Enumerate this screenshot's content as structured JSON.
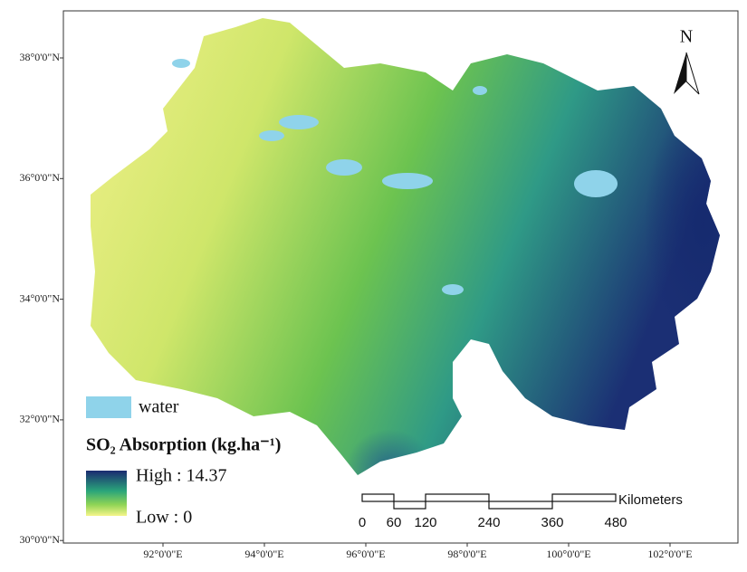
{
  "north_arrow": "N",
  "latitude_labels": [
    "38°0'0\"N",
    "36°0'0\"N",
    "34°0'0\"N",
    "32°0'0\"N",
    "30°0'0\"N"
  ],
  "longitude_labels": [
    "92°0'0\"E",
    "94°0'0\"E",
    "96°0'0\"E",
    "98°0'0\"E",
    "100°0'0\"E",
    "102°0'0\"E"
  ],
  "legend": {
    "water": "water",
    "title": "SO₂ Absorption (kg.ha⁻¹)",
    "high": "High : 14.37",
    "low": "Low : 0"
  },
  "scale_bar": {
    "unit": "Kilometers",
    "ticks": [
      0,
      60,
      120,
      240,
      360,
      480
    ]
  }
}
